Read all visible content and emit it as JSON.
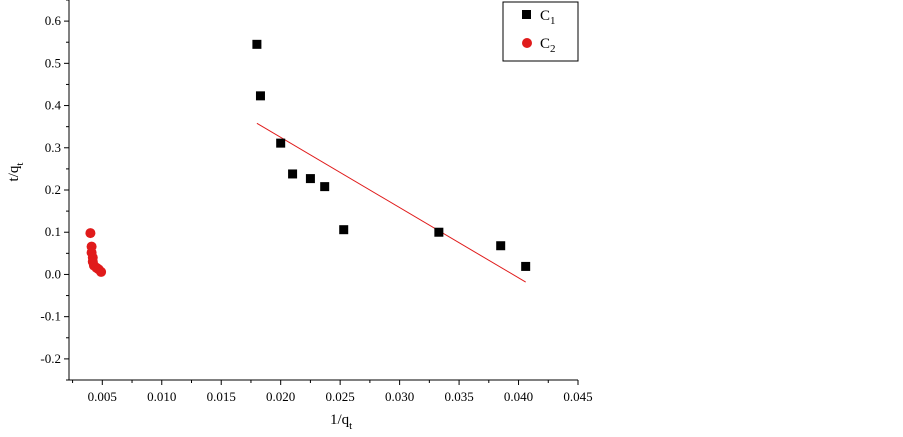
{
  "chart_data": {
    "type": "scatter",
    "xlabel": "1/q",
    "xlabel_sub": "t",
    "ylabel": "t/q",
    "ylabel_sub": "t",
    "xlim": [
      0.0022,
      0.045
    ],
    "ylim": [
      -0.25,
      0.65
    ],
    "x_ticks": [
      "0.005",
      "0.010",
      "0.015",
      "0.020",
      "0.025",
      "0.030",
      "0.035",
      "0.040",
      "0.045"
    ],
    "x_tick_values": [
      0.005,
      0.01,
      0.015,
      0.02,
      0.025,
      0.03,
      0.035,
      0.04,
      0.045
    ],
    "y_ticks": [
      "-0.2",
      "-0.1",
      "0.0",
      "0.1",
      "0.2",
      "0.3",
      "0.4",
      "0.5",
      "0.6"
    ],
    "y_tick_values": [
      -0.2,
      -0.1,
      0.0,
      0.1,
      0.2,
      0.3,
      0.4,
      0.5,
      0.6
    ],
    "legend_position": "top-right",
    "series": [
      {
        "name": "C",
        "name_sub": "1",
        "marker": "square",
        "color": "#000000",
        "points": [
          {
            "x": 0.018,
            "y": 0.545
          },
          {
            "x": 0.0183,
            "y": 0.423
          },
          {
            "x": 0.02,
            "y": 0.311
          },
          {
            "x": 0.021,
            "y": 0.238
          },
          {
            "x": 0.0225,
            "y": 0.227
          },
          {
            "x": 0.0237,
            "y": 0.208
          },
          {
            "x": 0.0253,
            "y": 0.106
          },
          {
            "x": 0.0333,
            "y": 0.1
          },
          {
            "x": 0.0385,
            "y": 0.068
          },
          {
            "x": 0.0406,
            "y": 0.019
          }
        ]
      },
      {
        "name": "C",
        "name_sub": "2",
        "marker": "circle",
        "color": "#e01b1b",
        "points": [
          {
            "x": 0.004,
            "y": 0.098
          },
          {
            "x": 0.0041,
            "y": 0.066
          },
          {
            "x": 0.0041,
            "y": 0.052
          },
          {
            "x": 0.0042,
            "y": 0.04
          },
          {
            "x": 0.0042,
            "y": 0.03
          },
          {
            "x": 0.0043,
            "y": 0.021
          },
          {
            "x": 0.0045,
            "y": 0.016
          },
          {
            "x": 0.0047,
            "y": 0.012
          },
          {
            "x": 0.0049,
            "y": 0.006
          }
        ]
      }
    ],
    "fit_line": {
      "color": "#e01b1b",
      "from": {
        "x": 0.018,
        "y": 0.358
      },
      "to": {
        "x": 0.0406,
        "y": -0.018
      }
    }
  }
}
